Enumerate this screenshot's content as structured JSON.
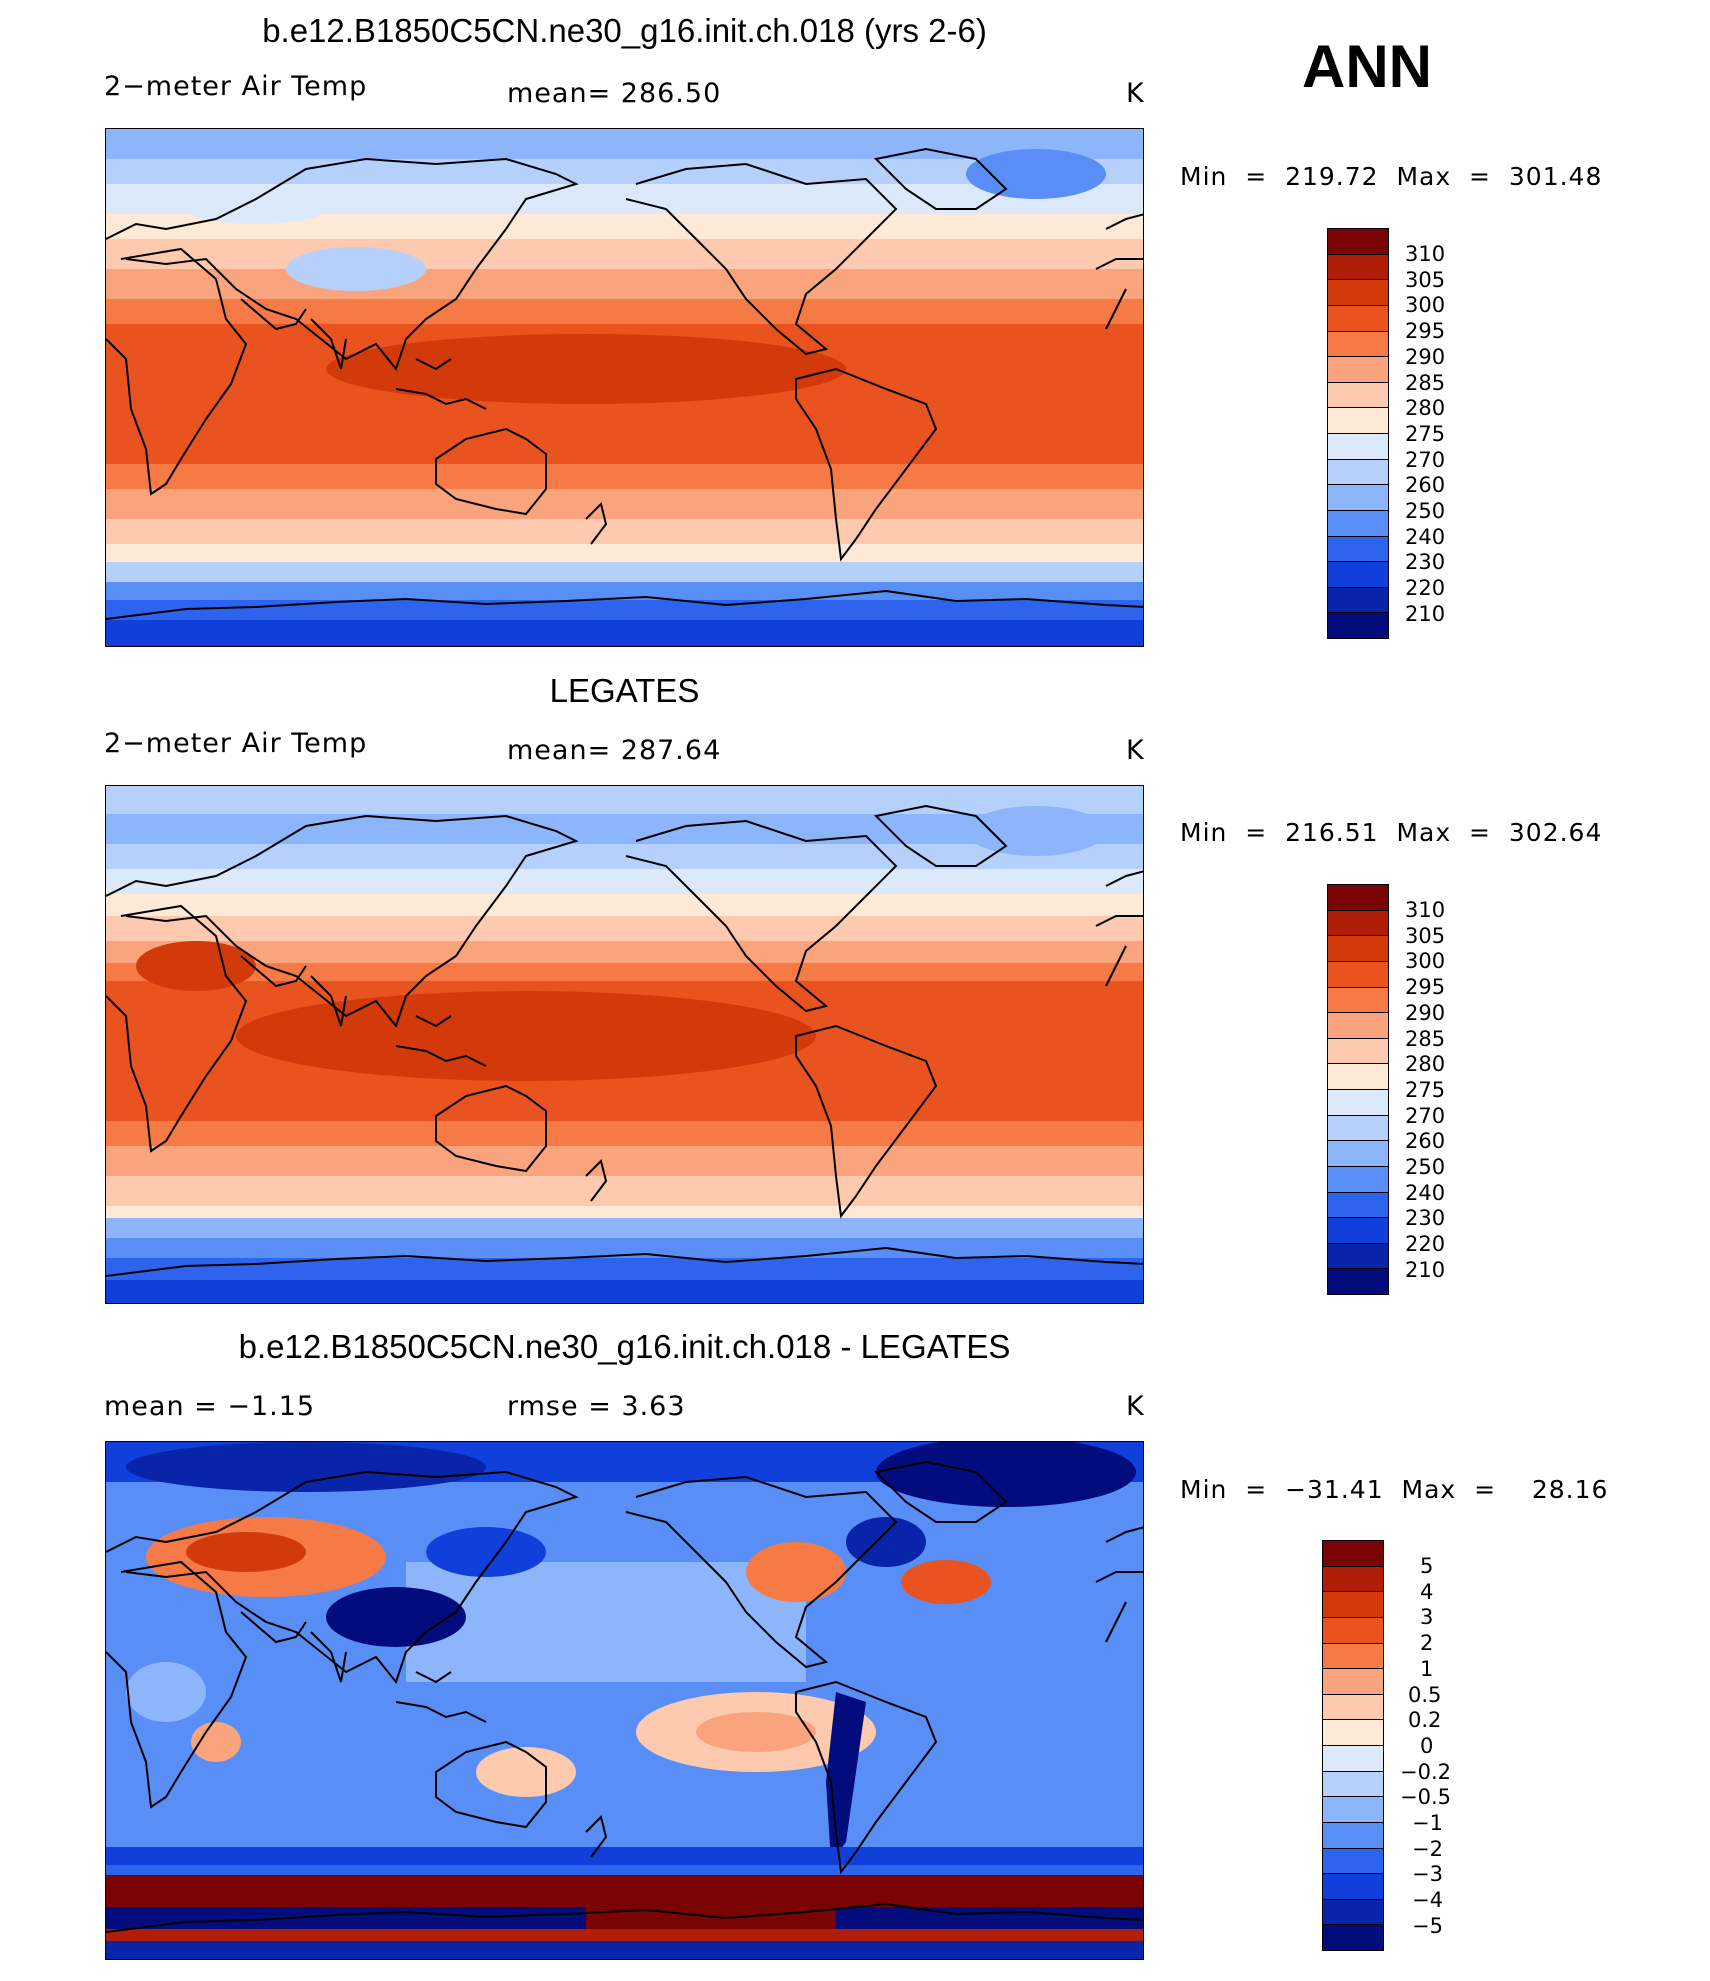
{
  "season": "ANN",
  "panels": [
    {
      "title": "b.e12.B1850C5CN.ne30_g16.init.ch.018 (yrs 2-6)",
      "left_label": "2−meter Air Temp",
      "center_label": "mean=  286.50",
      "units": "K",
      "minmax": "Min  =  219.72  Max  =  301.48",
      "colorbar_labels": [
        "310",
        "305",
        "300",
        "295",
        "290",
        "285",
        "280",
        "275",
        "270",
        "260",
        "250",
        "240",
        "230",
        "220",
        "210"
      ]
    },
    {
      "title": "LEGATES",
      "left_label": "2−meter Air Temp",
      "center_label": "mean=  287.64",
      "units": "K",
      "minmax": "Min  =  216.51  Max  =  302.64",
      "colorbar_labels": [
        "310",
        "305",
        "300",
        "295",
        "290",
        "285",
        "280",
        "275",
        "270",
        "260",
        "250",
        "240",
        "230",
        "220",
        "210"
      ]
    },
    {
      "title": "b.e12.B1850C5CN.ne30_g16.init.ch.018 - LEGATES",
      "left_label": "mean =    −1.15",
      "center_label": "rmse =     3.63",
      "units": "K",
      "minmax": "Min  =  −31.41  Max  =    28.16",
      "colorbar_labels": [
        "5",
        "4",
        "3",
        "2",
        "1",
        "0.5",
        "0.2",
        "0",
        "−0.2",
        "−0.5",
        "−1",
        "−2",
        "−3",
        "−4",
        "−5"
      ]
    }
  ],
  "colors": {
    "abs_palette": [
      "#7a0403",
      "#b11e08",
      "#d23a0b",
      "#e9531f",
      "#f57a45",
      "#f9a47d",
      "#fdcab0",
      "#fde9d6",
      "#dbe9fa",
      "#b5d1fb",
      "#8db5fb",
      "#5a8ef7",
      "#2e63ed",
      "#1040d9",
      "#0824a8",
      "#020c7c"
    ],
    "diff_palette": [
      "#7a0403",
      "#b11e08",
      "#d23a0b",
      "#e9531f",
      "#f57a45",
      "#f9a47d",
      "#fdcab0",
      "#fde9d6",
      "#dbe9fa",
      "#b5d1fb",
      "#8db5fb",
      "#5a8ef7",
      "#2e63ed",
      "#1040d9",
      "#0824a8",
      "#020c7c"
    ]
  }
}
